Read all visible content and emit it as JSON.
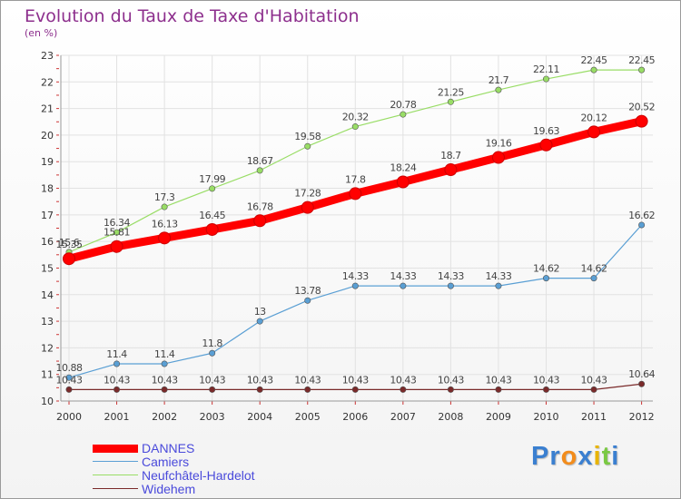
{
  "title": "Evolution du Taux de Taxe d'Habitation",
  "subtitle": "(en %)",
  "chart_data": {
    "type": "line",
    "title": "Evolution du Taux de Taxe d'Habitation",
    "subtitle": "(en %)",
    "x": [
      "2000",
      "2001",
      "2002",
      "2003",
      "2004",
      "2005",
      "2006",
      "2007",
      "2008",
      "2009",
      "2010",
      "2011",
      "2012"
    ],
    "ylim": [
      10,
      23
    ],
    "yticks": [
      10,
      11,
      12,
      13,
      14,
      15,
      16,
      17,
      18,
      19,
      20,
      21,
      22,
      23
    ],
    "grid": true,
    "legend_placement": "bottom-left",
    "series": [
      {
        "name": "DANNES",
        "color": "#ff0000",
        "values": [
          15.35,
          15.81,
          16.13,
          16.45,
          16.78,
          17.28,
          17.8,
          18.24,
          18.7,
          19.16,
          19.63,
          20.12,
          20.52
        ],
        "labels": [
          "15.35",
          "15.81",
          "16.13",
          "16.45",
          "16.78",
          "17.28",
          "17.8",
          "18.24",
          "18.7",
          "19.16",
          "19.63",
          "20.12",
          "20.52"
        ]
      },
      {
        "name": "Camiers",
        "color": "#5a9fd4",
        "values": [
          10.88,
          11.4,
          11.4,
          11.8,
          13,
          13.78,
          14.33,
          14.33,
          14.33,
          14.33,
          14.62,
          14.62,
          16.62
        ],
        "labels": [
          "10.88",
          "11.4",
          "11.4",
          "11.8",
          "13",
          "13.78",
          "14.33",
          "14.33",
          "14.33",
          "14.33",
          "14.62",
          "14.62",
          "16.62"
        ]
      },
      {
        "name": "Neufchâtel-Hardelot",
        "color": "#99dd66",
        "values": [
          15.6,
          16.34,
          17.3,
          17.99,
          18.67,
          19.58,
          20.32,
          20.78,
          21.25,
          21.7,
          22.11,
          22.45,
          22.45
        ],
        "labels": [
          "15.6",
          "16.34",
          "17.3",
          "17.99",
          "18.67",
          "19.58",
          "20.32",
          "20.78",
          "21.25",
          "21.7",
          "22.11",
          "22.45",
          "22.45"
        ]
      },
      {
        "name": "Widehem",
        "color": "#7a2a2a",
        "values": [
          10.43,
          10.43,
          10.43,
          10.43,
          10.43,
          10.43,
          10.43,
          10.43,
          10.43,
          10.43,
          10.43,
          10.43,
          10.64
        ],
        "labels": [
          "10.43",
          "10.43",
          "10.43",
          "10.43",
          "10.43",
          "10.43",
          "10.43",
          "10.43",
          "10.43",
          "10.43",
          "10.43",
          "10.43",
          "10.64"
        ]
      }
    ]
  },
  "legend": {
    "items": [
      {
        "label": "DANNES",
        "color": "#ff0000"
      },
      {
        "label": "Camiers",
        "color": "#5a9fd4"
      },
      {
        "label": "Neufchâtel-Hardelot",
        "color": "#99dd66"
      },
      {
        "label": "Widehem",
        "color": "#7a2a2a"
      }
    ]
  },
  "logo": {
    "text": "Proxiti",
    "letters": [
      "P",
      "r",
      "o",
      "x",
      "i",
      "t",
      "i"
    ],
    "colors": [
      "#3a7fd0",
      "#3a7fd0",
      "#f28c1c",
      "#3a7fd0",
      "#e8b400",
      "#7ac943",
      "#3a7fd0"
    ]
  }
}
